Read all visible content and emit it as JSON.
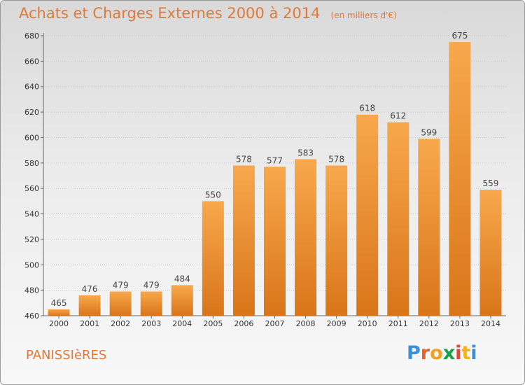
{
  "title": "Achats et Charges Externes 2000 à 2014",
  "subtitle": "(en milliers d'€)",
  "location": "PANISSIèRES",
  "logo": {
    "text": "Proxiti",
    "letter_colors": [
      "#3d8fd6",
      "#e8612c",
      "#f0a11f",
      "#1aa04a",
      "#d84c3c",
      "#f2b21c",
      "#3d8fd6"
    ]
  },
  "colors": {
    "bar_light": "#f8a84c",
    "bar_dark": "#d97519",
    "accent": "#e0783a"
  },
  "chart_data": {
    "type": "bar",
    "categories": [
      "2000",
      "2001",
      "2002",
      "2003",
      "2004",
      "2005",
      "2006",
      "2007",
      "2008",
      "2009",
      "2010",
      "2011",
      "2012",
      "2013",
      "2014"
    ],
    "values": [
      465,
      476,
      479,
      479,
      484,
      550,
      578,
      577,
      583,
      578,
      618,
      612,
      599,
      675,
      559
    ],
    "ylim": [
      460,
      680
    ],
    "yticks": [
      460,
      480,
      500,
      520,
      540,
      560,
      580,
      600,
      620,
      640,
      660,
      680
    ],
    "grid": true,
    "legend": "none"
  }
}
